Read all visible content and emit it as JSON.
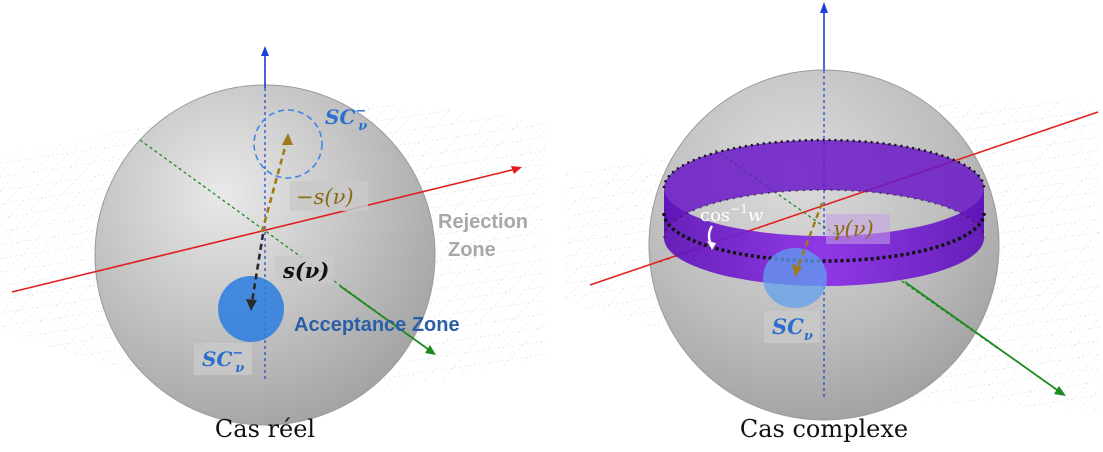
{
  "panels": [
    {
      "caption": "Cas réel",
      "labels": {
        "sc_top_base": "SC",
        "sc_top_sub": "ν",
        "sc_top_sup": "−",
        "minus_s": "−s(ν)",
        "s": "s(ν)",
        "rejection_line1": "Rejection",
        "rejection_line2": "Zone",
        "acceptance": "Acceptance Zone",
        "sc_bottom_base": "SC",
        "sc_bottom_sub": "ν",
        "sc_bottom_sup": "−"
      }
    },
    {
      "caption": "Cas complexe",
      "labels": {
        "acos_base": "cos",
        "acos_sup": "−1",
        "acos_var": "w",
        "gamma": "γ(ν)",
        "sc_base": "SC",
        "sc_sub": "ν"
      }
    }
  ],
  "colors": {
    "sphere": "#b9b9b9",
    "axis_vertical": "#1f3fd6",
    "axis_red": "#e02020",
    "axis_green": "#1e8a1e",
    "band": "#7a1fd6",
    "cap": "#2f7fe0",
    "label_blue": "#2a6fd0",
    "label_gold": "#8a6a12",
    "rejection_text": "#a8a8a8",
    "acceptance_text": "#2a5fa8"
  }
}
